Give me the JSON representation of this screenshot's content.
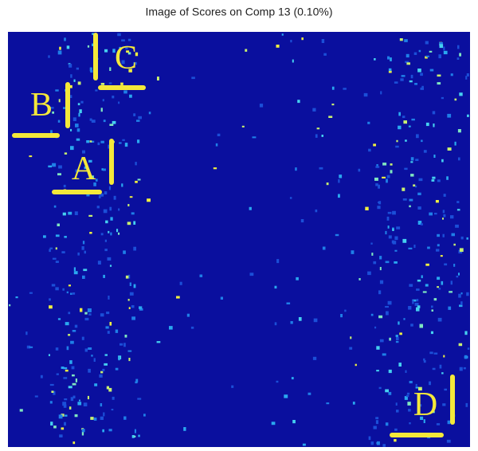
{
  "title": "Image of Scores on Comp 13 (0.10%)",
  "markers": [
    "A",
    "B",
    "C",
    "D"
  ]
}
